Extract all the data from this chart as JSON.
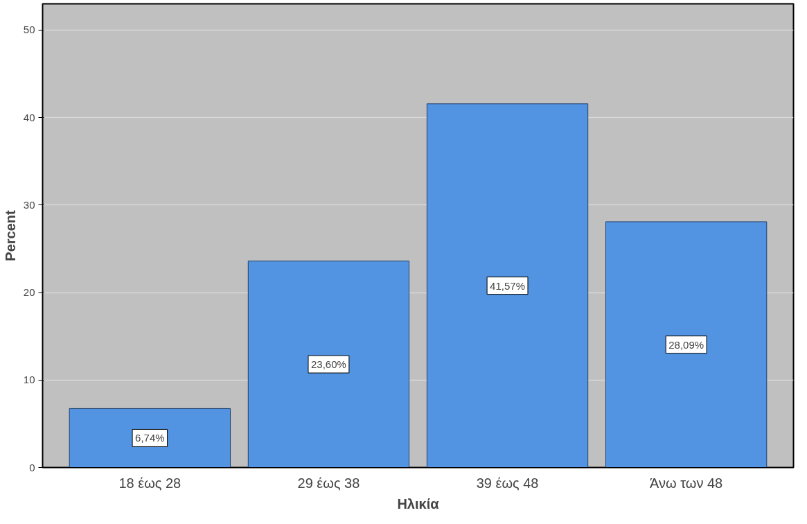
{
  "chart_data": {
    "type": "bar",
    "xlabel": "Ηλικία",
    "ylabel": "Percent",
    "categories": [
      "18 έως 28",
      "29 έως 38",
      "39 έως 48",
      "Άνω των 48"
    ],
    "values": [
      6.74,
      23.6,
      41.57,
      28.09
    ],
    "value_labels": [
      "6,74%",
      "23,60%",
      "41,57%",
      "28,09%"
    ],
    "color": "#5294e2",
    "ylim": [
      0,
      53
    ],
    "yticks": [
      0,
      10,
      20,
      30,
      40,
      50
    ],
    "grid": "y"
  }
}
